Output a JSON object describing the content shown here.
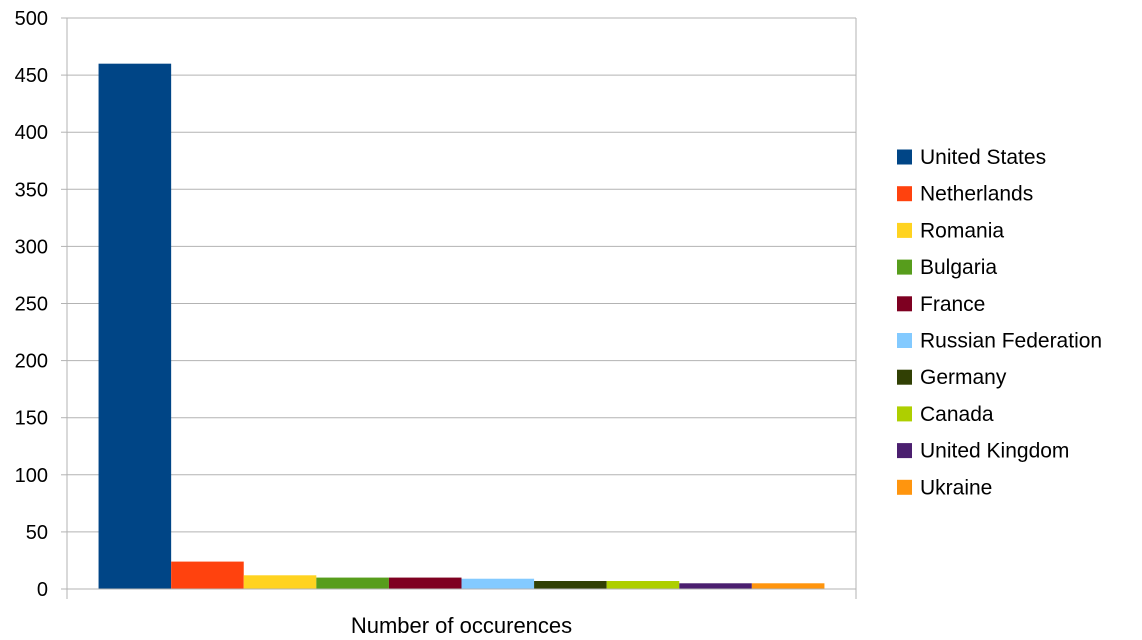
{
  "chart_data": {
    "type": "bar",
    "categories": [
      "Number of occurences"
    ],
    "series": [
      {
        "name": "United States",
        "color": "#004586",
        "values": [
          460
        ]
      },
      {
        "name": "Netherlands",
        "color": "#ff420e",
        "values": [
          24
        ]
      },
      {
        "name": "Romania",
        "color": "#ffd320",
        "values": [
          12
        ]
      },
      {
        "name": "Bulgaria",
        "color": "#579d1c",
        "values": [
          10
        ]
      },
      {
        "name": "France",
        "color": "#7e0021",
        "values": [
          10
        ]
      },
      {
        "name": "Russian Federation",
        "color": "#83caff",
        "values": [
          9
        ]
      },
      {
        "name": "Germany",
        "color": "#314004",
        "values": [
          7
        ]
      },
      {
        "name": "Canada",
        "color": "#aecf00",
        "values": [
          7
        ]
      },
      {
        "name": "United Kingdom",
        "color": "#4b1f6f",
        "values": [
          5
        ]
      },
      {
        "name": "Ukraine",
        "color": "#ff950e",
        "values": [
          5
        ]
      }
    ],
    "y_ticks": [
      0,
      50,
      100,
      150,
      200,
      250,
      300,
      350,
      400,
      450,
      500
    ],
    "ylim": [
      0,
      500
    ],
    "grid": true,
    "legend_position": "right",
    "title": "",
    "xlabel": "",
    "ylabel": ""
  }
}
